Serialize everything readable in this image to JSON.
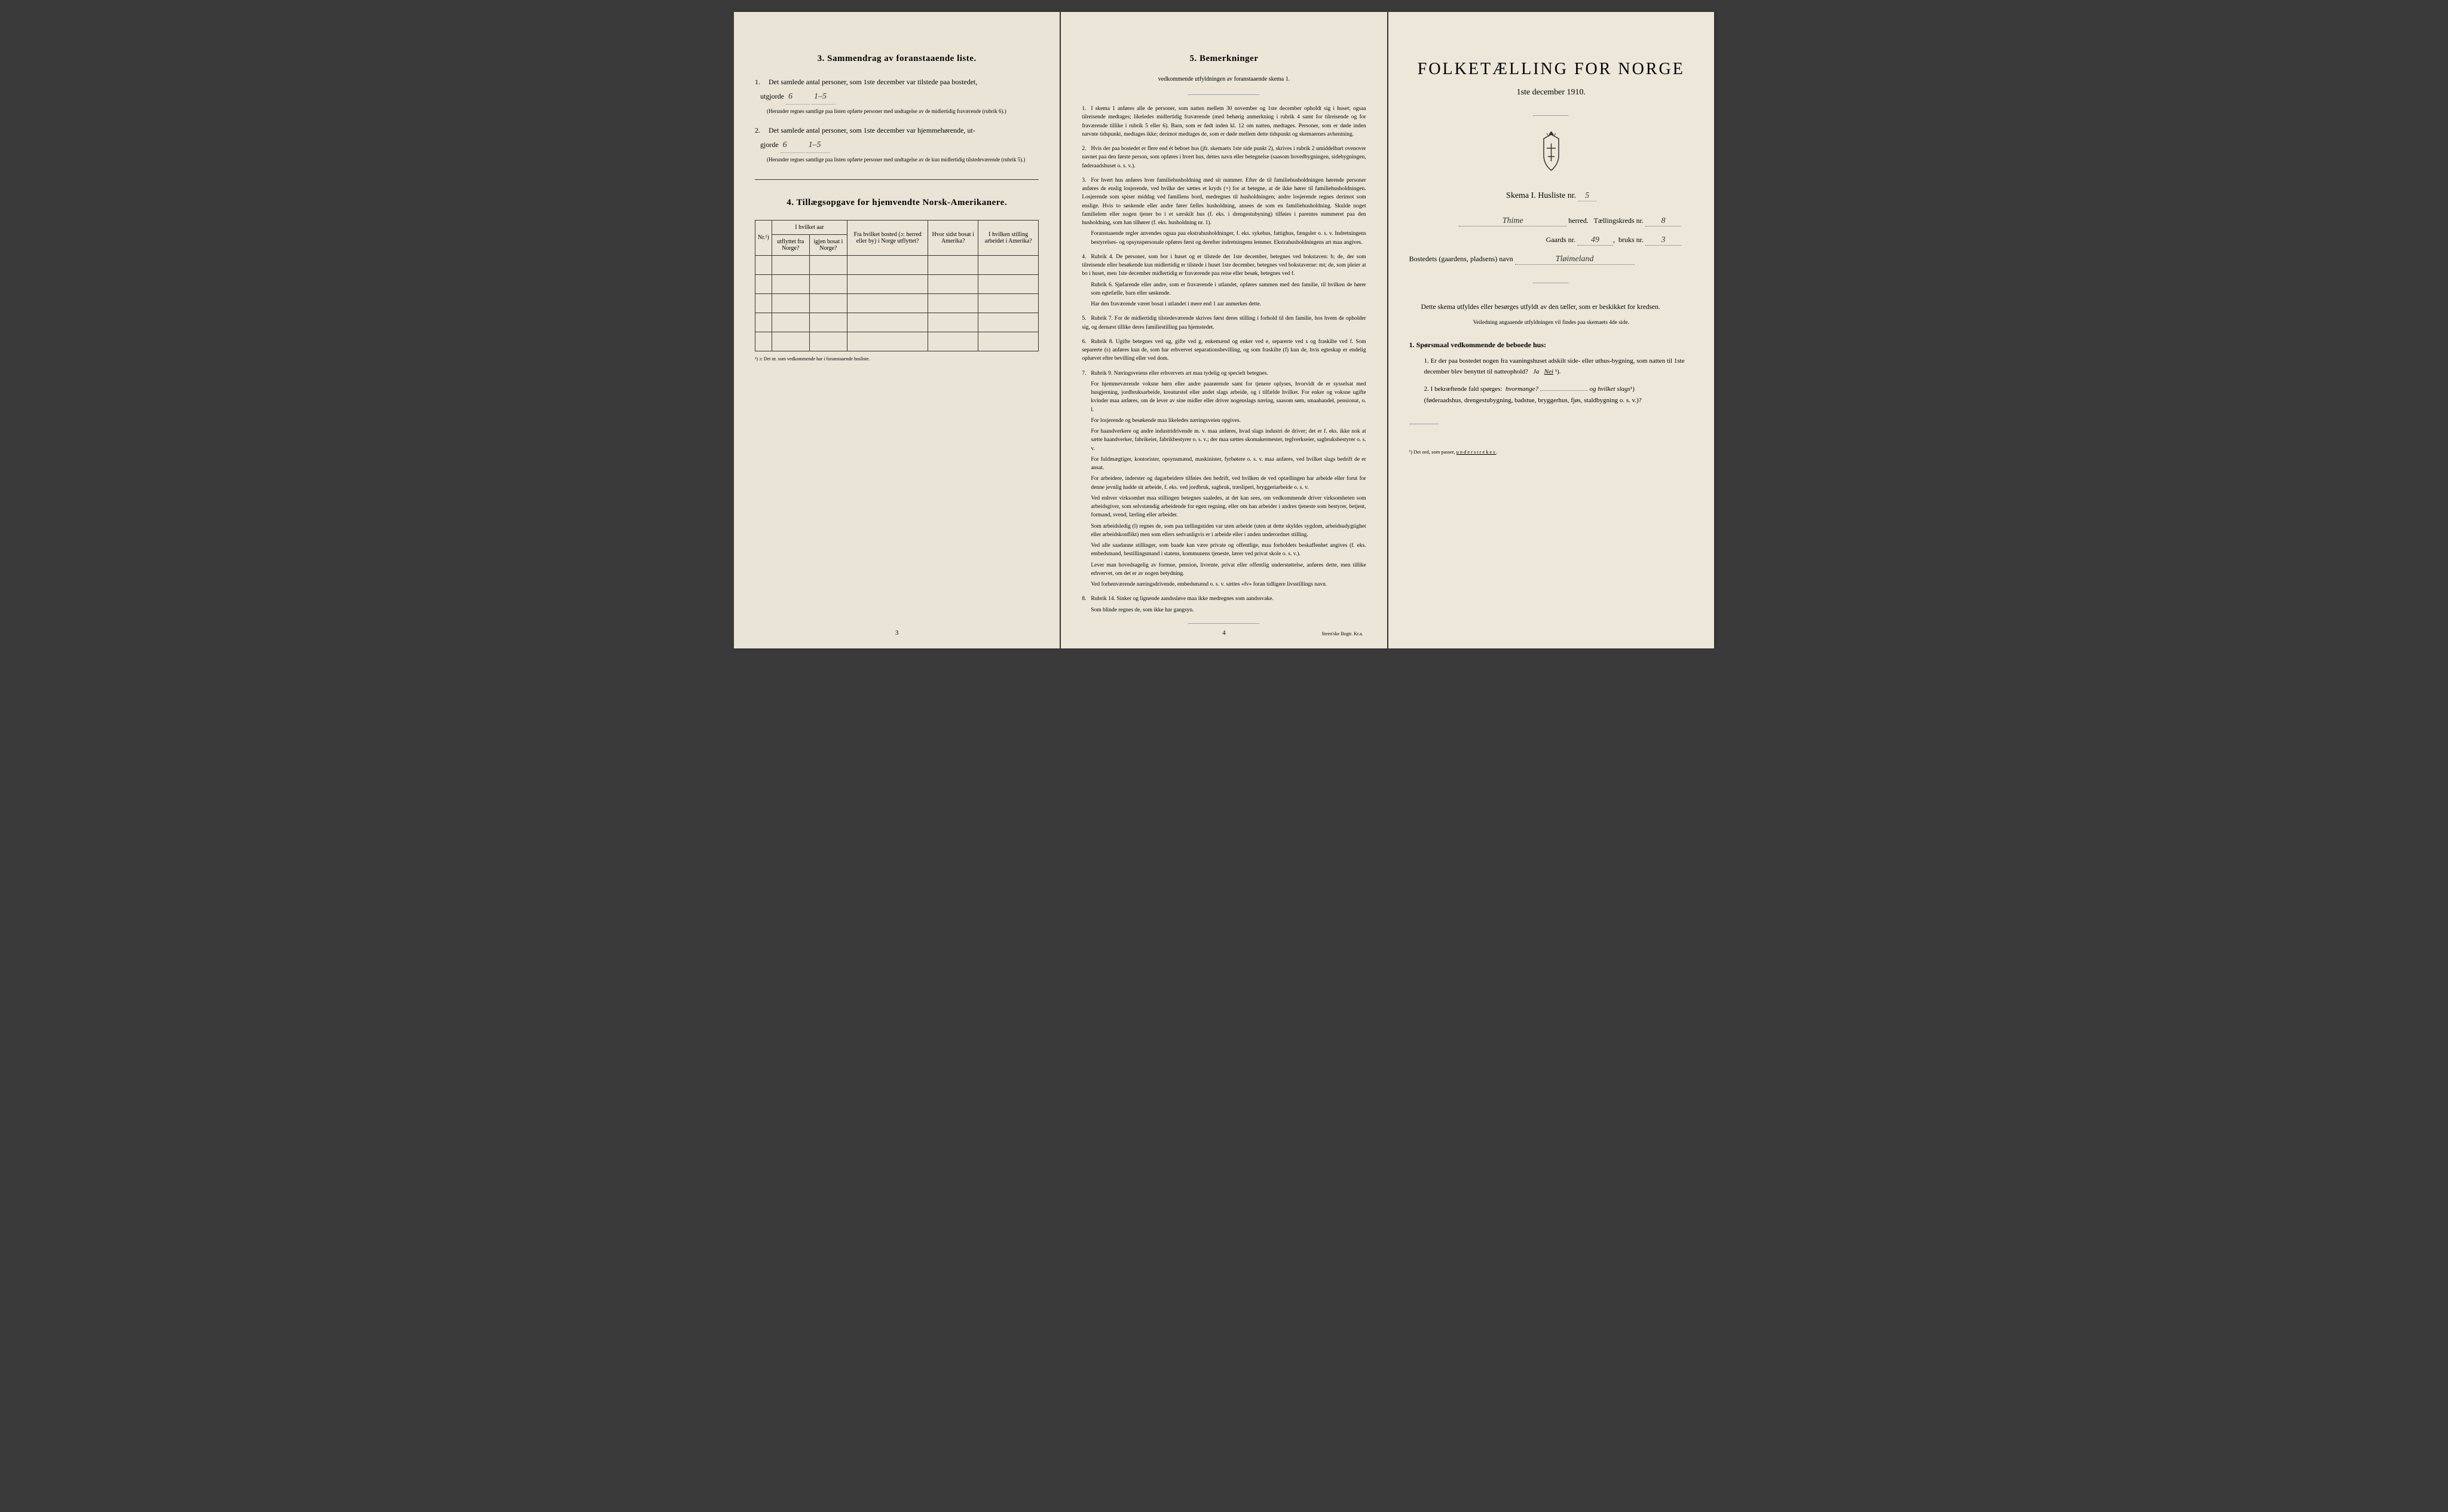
{
  "page_left": {
    "section3_title": "3.   Sammendrag av foranstaaende liste.",
    "item1_text": "Det samlede antal personer, som 1ste december var tilstede paa bostedet,",
    "item1_label": "utgjorde",
    "item1_value1": "6",
    "item1_value2": "1–5",
    "item1_note": "(Herunder regnes samtlige paa listen opførte personer med undtagelse av de midlertidig fraværende (rubrik 6).)",
    "item2_text": "Det samlede antal personer, som 1ste december var hjemmehørende, ut-",
    "item2_label": "gjorde",
    "item2_value1": "6",
    "item2_value2": "1–5",
    "item2_note": "(Herunder regnes samtlige paa listen opførte personer med undtagelse av de kun midlertidig tilstedeværende (rubrik 5).)",
    "section4_title": "4.   Tillægsopgave for hjemvendte Norsk-Amerikanere.",
    "table_headers": {
      "col1": "Nr.¹)",
      "col2_top": "I hvilket aar",
      "col2a": "utflyttet fra Norge?",
      "col2b": "igjen bosat i Norge?",
      "col3": "Fra hvilket bosted (ɔ: herred eller by) i Norge utflyttet?",
      "col4": "Hvor sidst bosat i Amerika?",
      "col5": "I hvilken stilling arbeidet i Amerika?"
    },
    "table_footnote": "¹) ɔ: Det nr. som vedkommende har i foranstaaende husliste.",
    "page_num": "3"
  },
  "page_center": {
    "title": "5.   Bemerkninger",
    "subtitle": "vedkommende utfyldningen av foranstaaende skema 1.",
    "remarks": [
      {
        "num": "1.",
        "text": "I skema 1 anføres alle de personer, som natten mellem 30 november og 1ste december opholdt sig i huset; ogsaa tilreisende medtages; likeledes midlertidig fraværende (med behørig anmerkning i rubrik 4 samt for tilreisende og for fraværende tillike i rubrik 5 eller 6). Barn, som er født inden kl. 12 om natten, medtages. Personer, som er døde inden nævnte tidspunkt, medtages ikke; derimot medtages de, som er døde mellem dette tidspunkt og skemaernes avhentning."
      },
      {
        "num": "2.",
        "text": "Hvis der paa bostedet er flere end ét beboet hus (jfr. skemaets 1ste side punkt 2), skrives i rubrik 2 umiddelbart ovenover navnet paa den første person, som opføres i hvert hus, dettes navn eller betegnelse (saasom hovedbygningen, sidebygningen, føderaadshuset o. s. v.)."
      },
      {
        "num": "3.",
        "text": "For hvert hus anføres hver familiehusholdning med sit nummer. Efter de til familiehusholdningen hørende personer anføres de enslig losjerende, ved hvilke der sættes et kryds (×) for at betegne, at de ikke hører til familiehusholdningen. Losjerende som spiser middag ved familiens bord, medregnes til husholdningen; andre losjerende regnes derimot som enslige. Hvis to søskende eller andre fører fælles husholdning, ansees de som en familiehusholdning. Skulde noget familielem eller nogen tjener bo i et særskilt hus (f. eks. i drengestubyning) tilføies i parentes nummeret paa den husholdning, som han tilhører (f. eks. husholdning nr. 1).",
        "extra": "Foranstaaende regler anvendes ogsaa paa ekstrahusholdninger, f. eks. sykehus, fattighus, fængsler o. s. v. Indretningens bestyrelses- og opsynspersonale opføres først og derefter indretningens lemmer. Ekstrahusholdningens art maa angives."
      },
      {
        "num": "4.",
        "text": "Rubrik 4. De personer, som bor i huset og er tilstede der 1ste december, betegnes ved bokstaven: b; de, der som tilreisende eller besøkende kun midlertidig er tilstede i huset 1ste december, betegnes ved bokstaverne: mt; de, som pleier at bo i huset, men 1ste december midlertidig er fraværende paa reise eller besøk, betegnes ved f.",
        "extra": "Rubrik 6. Sjøfarende eller andre, som er fraværende i utlandet, opføres sammen med den familie, til hvilken de hører som egtefælle, barn eller søskende.",
        "extra2": "Har den fraværende været bosat i utlandet i mere end 1 aar anmerkes dette."
      },
      {
        "num": "5.",
        "text": "Rubrik 7. For de midlertidig tilstedeværende skrives først deres stilling i forhold til den familie, hos hvem de opholder sig, og dernæst tillike deres familiestilling paa hjemstedet."
      },
      {
        "num": "6.",
        "text": "Rubrik 8. Ugifte betegnes ved ug, gifte ved g, enkemænd og enker ved e, separerte ved s og fraskilte ved f. Som separerte (s) anføres kun de, som har erhvervet separationsbevilling, og som fraskilte (f) kun de, hvis egteskap er endelig ophævet efter bevilling eller ved dom."
      },
      {
        "num": "7.",
        "text": "Rubrik 9. Næringsveiens eller erhvervets art maa tydelig og specielt betegnes.",
        "paragraphs": [
          "For hjemmeværende voksne børn eller andre paarørende samt for tjenere oplyses, hvorvidt de er sysselsat med husgjerning, jordbruksarbeide, kreaturstel eller andet slags arbeide, og i tilfælde hvilket. For enker og voksne ugifte kvinder maa anføres, om de lever av sine midler eller driver nogenslags næring, saasom søm, smaahandel, pensionat, o. l.",
          "For losjerende og besøkende maa likeledes næringsveien opgives.",
          "For haandverkere og andre industridrivende m. v. maa anføres, hvad slags industri de driver; det er f. eks. ikke nok at sætte haandverker, fabrikeier, fabrikbestyrer o. s. v.; der maa sættes skomakermester, teglverkseier, sagbruksbestyrer o. s. v.",
          "For fuldmægtiger, kontorister, opsynsmænd, maskinister, fyrbøtere o. s. v. maa anføres, ved hvilket slags bedrift de er ansat.",
          "For arbeidere, inderster og dagarbeidere tilføies den bedrift, ved hvilken de ved optællingen har arbeide eller forut for denne jevnlig hadde sit arbeide, f. eks. ved jordbruk, sagbruk, træsliperi, bryggeriarbeide o. s. v.",
          "Ved enhver virksomhet maa stillingen betegnes saaledes, at det kan sees, om vedkommende driver virksomheten som arbeidsgiver, som selvstændig arbeidende for egen regning, eller om han arbeider i andres tjeneste som bestyrer, betjent, formand, svend, lærling eller arbeider.",
          "Som arbeidsledig (l) regnes de, som paa tællingstiden var uten arbeide (uten at dette skyldes sygdom, arbeidsudygtighet eller arbeidskonflikt) men som ellers sedvanligvis er i arbeide eller i anden underordnet stilling.",
          "Ved alle saadanne stillinger, som baade kan være private og offentlige, maa forholdets beskaffenhet angives (f. eks. embedsmand, bestillingsmand i statens, kommunens tjeneste, lærer ved privat skole o. s. v.).",
          "Lever man hovedsagelig av formue, pension, livrente, privat eller offentlig understøttelse, anføres dette, men tillike erhvervet, om det er av nogen betydning.",
          "Ved forhenværende næringsdrivende, embedsmænd o. s. v. sættes «fv» foran tidligere livsstillings navn."
        ]
      },
      {
        "num": "8.",
        "text": "Rubrik 14. Sinker og lignende aandssløve maa ikke medregnes som aandssvake.",
        "extra": "Som blinde regnes de, som ikke har gangsyn."
      }
    ],
    "page_num": "4",
    "imprint": "Steen'ske Bogtr. Kr.a."
  },
  "page_right": {
    "main_title": "FOLKETÆLLING FOR NORGE",
    "subtitle": "1ste december 1910.",
    "form_line_prefix": "Skema I.   Husliste nr.",
    "husliste_nr": "5",
    "herred_label": "herred.",
    "herred_value": "Thime",
    "kreds_label": "Tællingskreds nr.",
    "kreds_value": "8",
    "gaards_label": "Gaards nr.",
    "gaards_value": "49",
    "bruks_label": "bruks nr.",
    "bruks_value": "3",
    "bosted_label": "Bostedets (gaardens, pladsens) navn",
    "bosted_value": "Tløimeland",
    "instruction": "Dette skema utfyldes eller besørges utfyldt av den tæller, som er beskikket for kredsen.",
    "instruction_sub": "Veiledning angaaende utfyldningen vil findes paa skemaets 4de side.",
    "q_header": "1. Spørsmaal vedkommende de beboede hus:",
    "q1": "Er der paa bostedet nogen fra vaaningshuset adskilt side- eller uthus-bygning, som natten til 1ste december blev benyttet til natteophold?",
    "q1_ja": "Ja",
    "q1_nei": "Nei",
    "q1_sup": "¹).",
    "q2": "I bekræftende fald spørges:",
    "q2_a": "hvormange?",
    "q2_b": "og hvilket slags",
    "q2_sup": "¹)",
    "q2_tail": "(føderaadshus, drengestubygning, badstue, bryggerhus, fjøs, staldbygning o. s. v.)?",
    "footnote": "¹) Det ord, som passer, understrekes."
  }
}
